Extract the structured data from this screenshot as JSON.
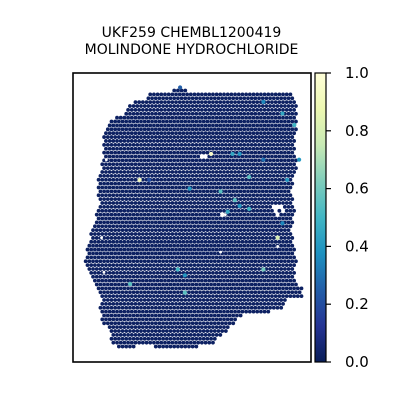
{
  "chart_data": {
    "type": "heatmap",
    "title": [
      "UKF259 CHEMBL1200419",
      "MOLINDONE HYDROCHLORIDE"
    ],
    "xlabel": "",
    "ylabel": "",
    "colormap": "YlGnBu",
    "colorbar": {
      "min": 0.0,
      "max": 1.0,
      "ticks": [
        "0.0",
        "0.2",
        "0.4",
        "0.6",
        "0.8",
        "1.0"
      ],
      "tick_values": [
        0.0,
        0.2,
        0.4,
        0.6,
        0.8,
        1.0
      ]
    },
    "background_value": 0.02,
    "highlighted_spots": [
      {
        "x": 0.45,
        "y": 0.95,
        "value": 0.25
      },
      {
        "x": 0.8,
        "y": 0.9,
        "value": 0.35
      },
      {
        "x": 0.88,
        "y": 0.86,
        "value": 0.45
      },
      {
        "x": 0.93,
        "y": 0.82,
        "value": 0.5
      },
      {
        "x": 0.58,
        "y": 0.72,
        "value": 0.95
      },
      {
        "x": 0.67,
        "y": 0.72,
        "value": 0.45
      },
      {
        "x": 0.7,
        "y": 0.72,
        "value": 0.4
      },
      {
        "x": 0.8,
        "y": 0.7,
        "value": 0.3
      },
      {
        "x": 0.95,
        "y": 0.7,
        "value": 0.4
      },
      {
        "x": 0.28,
        "y": 0.63,
        "value": 0.9
      },
      {
        "x": 0.32,
        "y": 0.63,
        "value": 0.2
      },
      {
        "x": 0.74,
        "y": 0.64,
        "value": 0.55
      },
      {
        "x": 0.9,
        "y": 0.63,
        "value": 0.4
      },
      {
        "x": 0.49,
        "y": 0.6,
        "value": 0.4
      },
      {
        "x": 0.62,
        "y": 0.59,
        "value": 0.55
      },
      {
        "x": 0.68,
        "y": 0.56,
        "value": 0.55
      },
      {
        "x": 0.7,
        "y": 0.54,
        "value": 0.4
      },
      {
        "x": 0.65,
        "y": 0.52,
        "value": 0.45
      },
      {
        "x": 0.74,
        "y": 0.53,
        "value": 0.5
      },
      {
        "x": 0.86,
        "y": 0.43,
        "value": 0.8
      },
      {
        "x": 0.88,
        "y": 0.48,
        "value": 0.35
      },
      {
        "x": 0.44,
        "y": 0.32,
        "value": 0.5
      },
      {
        "x": 0.47,
        "y": 0.3,
        "value": 0.4
      },
      {
        "x": 0.8,
        "y": 0.32,
        "value": 0.6
      },
      {
        "x": 0.24,
        "y": 0.27,
        "value": 0.55
      },
      {
        "x": 0.47,
        "y": 0.24,
        "value": 0.55
      }
    ],
    "gaps": [
      {
        "x": 0.55,
        "y": 0.71
      },
      {
        "x": 0.63,
        "y": 0.51
      },
      {
        "x": 0.86,
        "y": 0.51
      },
      {
        "x": 0.88,
        "y": 0.53
      },
      {
        "x": 0.85,
        "y": 0.53
      }
    ]
  }
}
